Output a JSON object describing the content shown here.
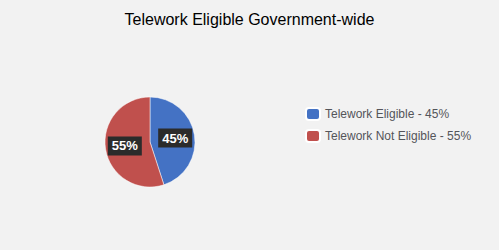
{
  "chart_data": {
    "type": "pie",
    "title": "Telework Eligible Government-wide",
    "categories": [
      "Telework Eligible - 45%",
      "Telework Not Eligible - 55%"
    ],
    "values": [
      45,
      55
    ],
    "value_labels": [
      "45%",
      "55%"
    ],
    "colors": [
      "#4472C4",
      "#C0504D"
    ],
    "data_labels": true,
    "legend": "right"
  }
}
